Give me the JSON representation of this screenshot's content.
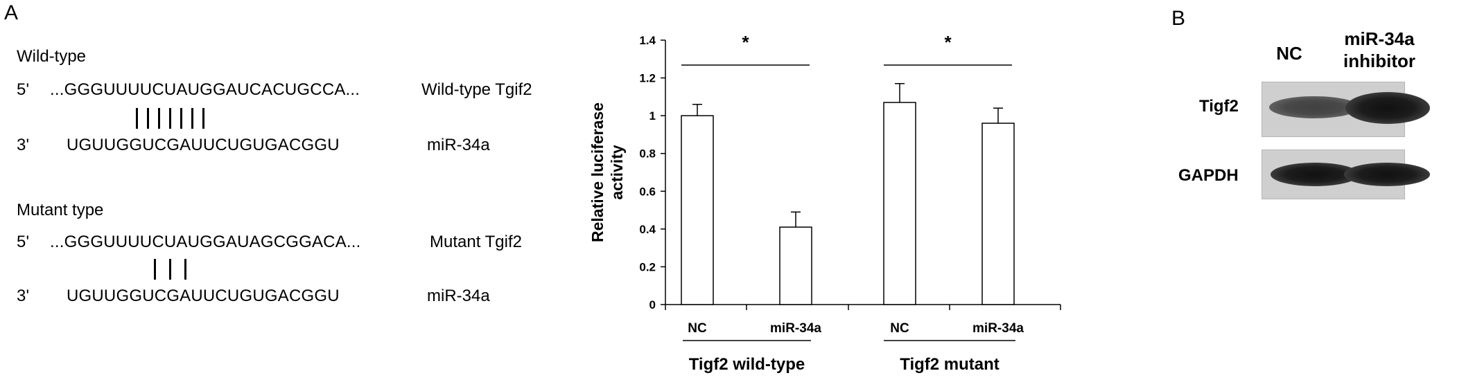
{
  "panel_a": {
    "letter": "A",
    "wild_type": {
      "heading": "Wild-type",
      "five_prime_end": "5'",
      "target_seq": "...GGGUUUUCUAUGGAUCACUGCCA...",
      "target_label": "Wild-type Tgif2",
      "base_pairs": "|||||||",
      "three_prime_end": "3'",
      "mirna_seq": "UGUUGGUCGAUUCUGUGACGGU",
      "mirna_label": "miR-34a"
    },
    "mutant": {
      "heading": "Mutant type",
      "five_prime_end": "5'",
      "target_seq": "...GGGUUUUCUAUGGAUAGCGGACA...",
      "target_label": "Mutant Tgif2",
      "base_pairs": "|||",
      "three_prime_end": "3'",
      "mirna_seq": "UGUUGGUCGAUUCUGUGACGGU",
      "mirna_label": "miR-34a"
    }
  },
  "chart_data": {
    "type": "bar",
    "ylabel": "Relative luciferase activity",
    "ylabel_lines": [
      "Relative luciferase",
      "activity"
    ],
    "ylim": [
      0,
      1.4
    ],
    "yticks": [
      "0",
      "0.2",
      "0.4",
      "0.6",
      "0.8",
      "1",
      "1.2",
      "1.4"
    ],
    "ytick_values": [
      0,
      0.2,
      0.4,
      0.6,
      0.8,
      1,
      1.2,
      1.4
    ],
    "categories": [
      "NC",
      "miR-34a",
      "NC",
      "miR-34a"
    ],
    "values": [
      1.0,
      0.41,
      1.07,
      0.96
    ],
    "errors": [
      0.06,
      0.08,
      0.1,
      0.08
    ],
    "groups": [
      {
        "label": "Tigf2 wild-type",
        "categories": [
          0,
          1
        ]
      },
      {
        "label": "Tigf2 mutant",
        "categories": [
          2,
          3
        ]
      }
    ],
    "significance": [
      {
        "pair": [
          0,
          1
        ],
        "symbol": "*"
      },
      {
        "pair": [
          2,
          3
        ],
        "symbol": "*"
      }
    ],
    "bar_fill": "#ffffff",
    "bar_stroke": "#000000",
    "grid": false,
    "legend": "none"
  },
  "panel_b": {
    "letter": "B",
    "lanes": [
      "NC",
      "miR-34a inhibitor"
    ],
    "lane_lines": [
      [
        "NC"
      ],
      [
        "miR-34a",
        "inhibitor"
      ]
    ],
    "rows": [
      {
        "label": "Tigf2",
        "intensities": [
          0.6,
          1.0
        ]
      },
      {
        "label": "GAPDH",
        "intensities": [
          1.0,
          1.0
        ]
      }
    ]
  }
}
